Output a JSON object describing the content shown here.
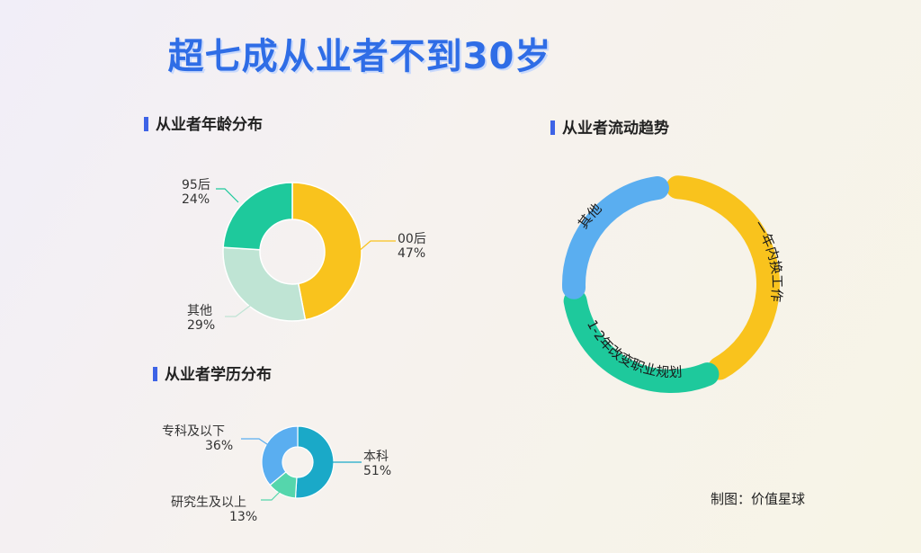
{
  "title": "超七成从业者不到30岁",
  "credit": "制图：价值星球",
  "chart_data": [
    {
      "type": "pie",
      "title": "从业者年龄分布",
      "slices": [
        {
          "label": "00后",
          "value": 47,
          "pct_label": "47%",
          "color": "#f9c31d"
        },
        {
          "label": "其他",
          "value": 29,
          "pct_label": "29%",
          "color": "#bfe4d4"
        },
        {
          "label": "95后",
          "value": 24,
          "pct_label": "24%",
          "color": "#1ec99c"
        }
      ]
    },
    {
      "type": "pie",
      "title": "从业者学历分布",
      "slices": [
        {
          "label": "本科",
          "value": 51,
          "pct_label": "51%",
          "color": "#1aa9c8"
        },
        {
          "label": "研究生及以上",
          "value": 13,
          "pct_label": "13%",
          "color": "#55d6ac"
        },
        {
          "label": "专科及以下",
          "value": 36,
          "pct_label": "36%",
          "color": "#5aaef0"
        }
      ]
    },
    {
      "type": "pie",
      "title": "从业者流动趋势",
      "slices": [
        {
          "label": "一年内换工作",
          "color": "#f9c31d"
        },
        {
          "label": "1-2年改变职业规划",
          "color": "#1ec99c"
        },
        {
          "label": "其他",
          "color": "#5aaef0"
        }
      ]
    }
  ]
}
